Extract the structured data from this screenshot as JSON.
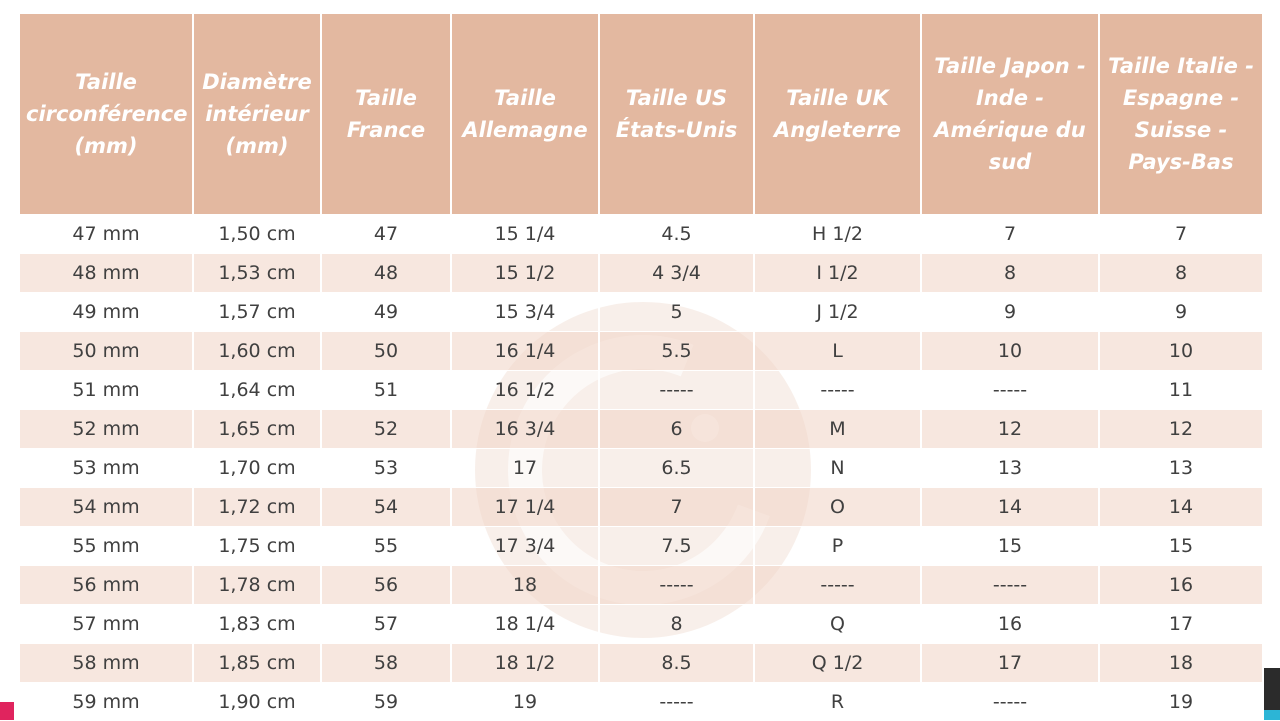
{
  "table": {
    "headers": [
      "Taille circonférence (mm)",
      "Diamètre intérieur (mm)",
      "Taille France",
      "Taille Allemagne",
      "Taille US États-Unis",
      "Taille UK Angleterre",
      "Taille Japon - Inde - Amérique du sud",
      "Taille Italie - Espagne - Suisse - Pays-Bas"
    ],
    "rows": [
      [
        "47 mm",
        "1,50 cm",
        "47",
        "15 1/4",
        "4.5",
        "H 1/2",
        "7",
        "7"
      ],
      [
        "48 mm",
        "1,53 cm",
        "48",
        "15 1/2",
        "4 3/4",
        "I 1/2",
        "8",
        "8"
      ],
      [
        "49 mm",
        "1,57 cm",
        "49",
        "15 3/4",
        "5",
        "J 1/2",
        "9",
        "9"
      ],
      [
        "50 mm",
        "1,60 cm",
        "50",
        "16 1/4",
        "5.5",
        "L",
        "10",
        "10"
      ],
      [
        "51 mm",
        "1,64 cm",
        "51",
        "16 1/2",
        "-----",
        "-----",
        "-----",
        "11"
      ],
      [
        "52 mm",
        "1,65 cm",
        "52",
        "16 3/4",
        "6",
        "M",
        "12",
        "12"
      ],
      [
        "53 mm",
        "1,70 cm",
        "53",
        "17",
        "6.5",
        "N",
        "13",
        "13"
      ],
      [
        "54 mm",
        "1,72 cm",
        "54",
        "17 1/4",
        "7",
        "O",
        "14",
        "14"
      ],
      [
        "55 mm",
        "1,75 cm",
        "55",
        "17 3/4",
        "7.5",
        "P",
        "15",
        "15"
      ],
      [
        "56 mm",
        "1,78 cm",
        "56",
        "18",
        "-----",
        "-----",
        "-----",
        "16"
      ],
      [
        "57 mm",
        "1,83 cm",
        "57",
        "18 1/4",
        "8",
        "Q",
        "16",
        "17"
      ],
      [
        "58 mm",
        "1,85 cm",
        "58",
        "18 1/2",
        "8.5",
        "Q 1/2",
        "17",
        "18"
      ],
      [
        "59 mm",
        "1,90 cm",
        "59",
        "19",
        "-----",
        "R",
        "-----",
        "19"
      ]
    ]
  }
}
